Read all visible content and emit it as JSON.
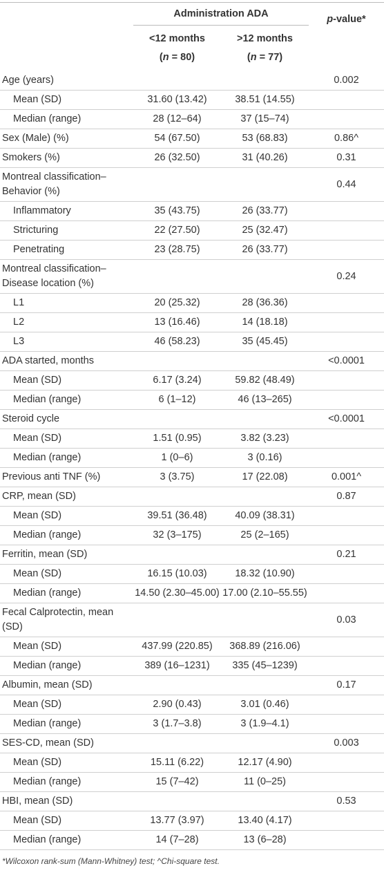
{
  "table": {
    "group_header": "Administration ADA",
    "col1_label": "<12 months",
    "col1_n_prefix": "(",
    "col1_n_var": "n",
    "col1_n_value": " = 80)",
    "col2_label": ">12 months",
    "col2_n_prefix": "(",
    "col2_n_var": "n",
    "col2_n_value": " = 77)",
    "pvalue_italic": "p",
    "pvalue_rest": "-value*",
    "rows": [
      {
        "label": "Age (years)",
        "c1": "",
        "c2": "",
        "p": "0.002",
        "indent": false
      },
      {
        "label": "Mean (SD)",
        "c1": "31.60 (13.42)",
        "c2": "38.51 (14.55)",
        "p": "",
        "indent": true
      },
      {
        "label": "Median (range)",
        "c1": "28 (12–64)",
        "c2": "37 (15–74)",
        "p": "",
        "indent": true
      },
      {
        "label": "Sex (Male) (%)",
        "c1": "54 (67.50)",
        "c2": "53 (68.83)",
        "p": "0.86^",
        "indent": false
      },
      {
        "label": "Smokers (%)",
        "c1": "26 (32.50)",
        "c2": "31 (40.26)",
        "p": "0.31",
        "indent": false
      },
      {
        "label": "Montreal classification–Behavior (%)",
        "c1": "",
        "c2": "",
        "p": "0.44",
        "indent": false
      },
      {
        "label": "Inflammatory",
        "c1": "35 (43.75)",
        "c2": "26 (33.77)",
        "p": "",
        "indent": true
      },
      {
        "label": "Stricturing",
        "c1": "22 (27.50)",
        "c2": "25 (32.47)",
        "p": "",
        "indent": true
      },
      {
        "label": "Penetrating",
        "c1": "23 (28.75)",
        "c2": "26 (33.77)",
        "p": "",
        "indent": true
      },
      {
        "label": "Montreal classification–Disease location (%)",
        "c1": "",
        "c2": "",
        "p": "0.24",
        "indent": false
      },
      {
        "label": "L1",
        "c1": "20 (25.32)",
        "c2": "28 (36.36)",
        "p": "",
        "indent": true
      },
      {
        "label": "L2",
        "c1": "13 (16.46)",
        "c2": "14 (18.18)",
        "p": "",
        "indent": true
      },
      {
        "label": "L3",
        "c1": "46 (58.23)",
        "c2": "35 (45.45)",
        "p": "",
        "indent": true
      },
      {
        "label": "ADA started, months",
        "c1": "",
        "c2": "",
        "p": "<0.0001",
        "indent": false
      },
      {
        "label": "Mean (SD)",
        "c1": "6.17 (3.24)",
        "c2": "59.82 (48.49)",
        "p": "",
        "indent": true
      },
      {
        "label": "Median (range)",
        "c1": "6 (1–12)",
        "c2": "46 (13–265)",
        "p": "",
        "indent": true
      },
      {
        "label": "Steroid cycle",
        "c1": "",
        "c2": "",
        "p": "<0.0001",
        "indent": false
      },
      {
        "label": "Mean (SD)",
        "c1": "1.51 (0.95)",
        "c2": "3.82 (3.23)",
        "p": "",
        "indent": true
      },
      {
        "label": "Median (range)",
        "c1": "1 (0–6)",
        "c2": "3 (0.16)",
        "p": "",
        "indent": true
      },
      {
        "label": "Previous anti TNF (%)",
        "c1": "3 (3.75)",
        "c2": "17 (22.08)",
        "p": "0.001^",
        "indent": false
      },
      {
        "label": "CRP, mean (SD)",
        "c1": "",
        "c2": "",
        "p": "0.87",
        "indent": false
      },
      {
        "label": "Mean (SD)",
        "c1": "39.51 (36.48)",
        "c2": "40.09 (38.31)",
        "p": "",
        "indent": true
      },
      {
        "label": "Median (range)",
        "c1": "32 (3–175)",
        "c2": "25 (2–165)",
        "p": "",
        "indent": true
      },
      {
        "label": "Ferritin, mean (SD)",
        "c1": "",
        "c2": "",
        "p": "0.21",
        "indent": false
      },
      {
        "label": "Mean (SD)",
        "c1": "16.15 (10.03)",
        "c2": "18.32 (10.90)",
        "p": "",
        "indent": true
      },
      {
        "label": "Median (range)",
        "c1": "14.50 (2.30–45.00)",
        "c2": "17.00 (2.10–55.55)",
        "p": "",
        "indent": true
      },
      {
        "label": "Fecal Calprotectin, mean (SD)",
        "c1": "",
        "c2": "",
        "p": "0.03",
        "indent": false
      },
      {
        "label": "Mean (SD)",
        "c1": "437.99 (220.85)",
        "c2": "368.89 (216.06)",
        "p": "",
        "indent": true
      },
      {
        "label": "Median (range)",
        "c1": "389 (16–1231)",
        "c2": "335 (45–1239)",
        "p": "",
        "indent": true
      },
      {
        "label": "Albumin, mean (SD)",
        "c1": "",
        "c2": "",
        "p": "0.17",
        "indent": false
      },
      {
        "label": "Mean (SD)",
        "c1": "2.90 (0.43)",
        "c2": "3.01 (0.46)",
        "p": "",
        "indent": true
      },
      {
        "label": "Median (range)",
        "c1": "3 (1.7–3.8)",
        "c2": "3 (1.9–4.1)",
        "p": "",
        "indent": true
      },
      {
        "label": "SES-CD, mean (SD)",
        "c1": "",
        "c2": "",
        "p": "0.003",
        "indent": false
      },
      {
        "label": "Mean (SD)",
        "c1": "15.11 (6.22)",
        "c2": "12.17 (4.90)",
        "p": "",
        "indent": true
      },
      {
        "label": "Median (range)",
        "c1": "15 (7–42)",
        "c2": "11 (0–25)",
        "p": "",
        "indent": true
      },
      {
        "label": "HBI, mean (SD)",
        "c1": "",
        "c2": "",
        "p": "0.53",
        "indent": false
      },
      {
        "label": "Mean (SD)",
        "c1": "13.77 (3.97)",
        "c2": "13.40 (4.17)",
        "p": "",
        "indent": true
      },
      {
        "label": "Median (range)",
        "c1": "14 (7–28)",
        "c2": "13 (6–28)",
        "p": "",
        "indent": true
      }
    ],
    "footnote": "*Wilcoxon rank-sum (Mann-Whitney) test; ^Chi-square test."
  }
}
